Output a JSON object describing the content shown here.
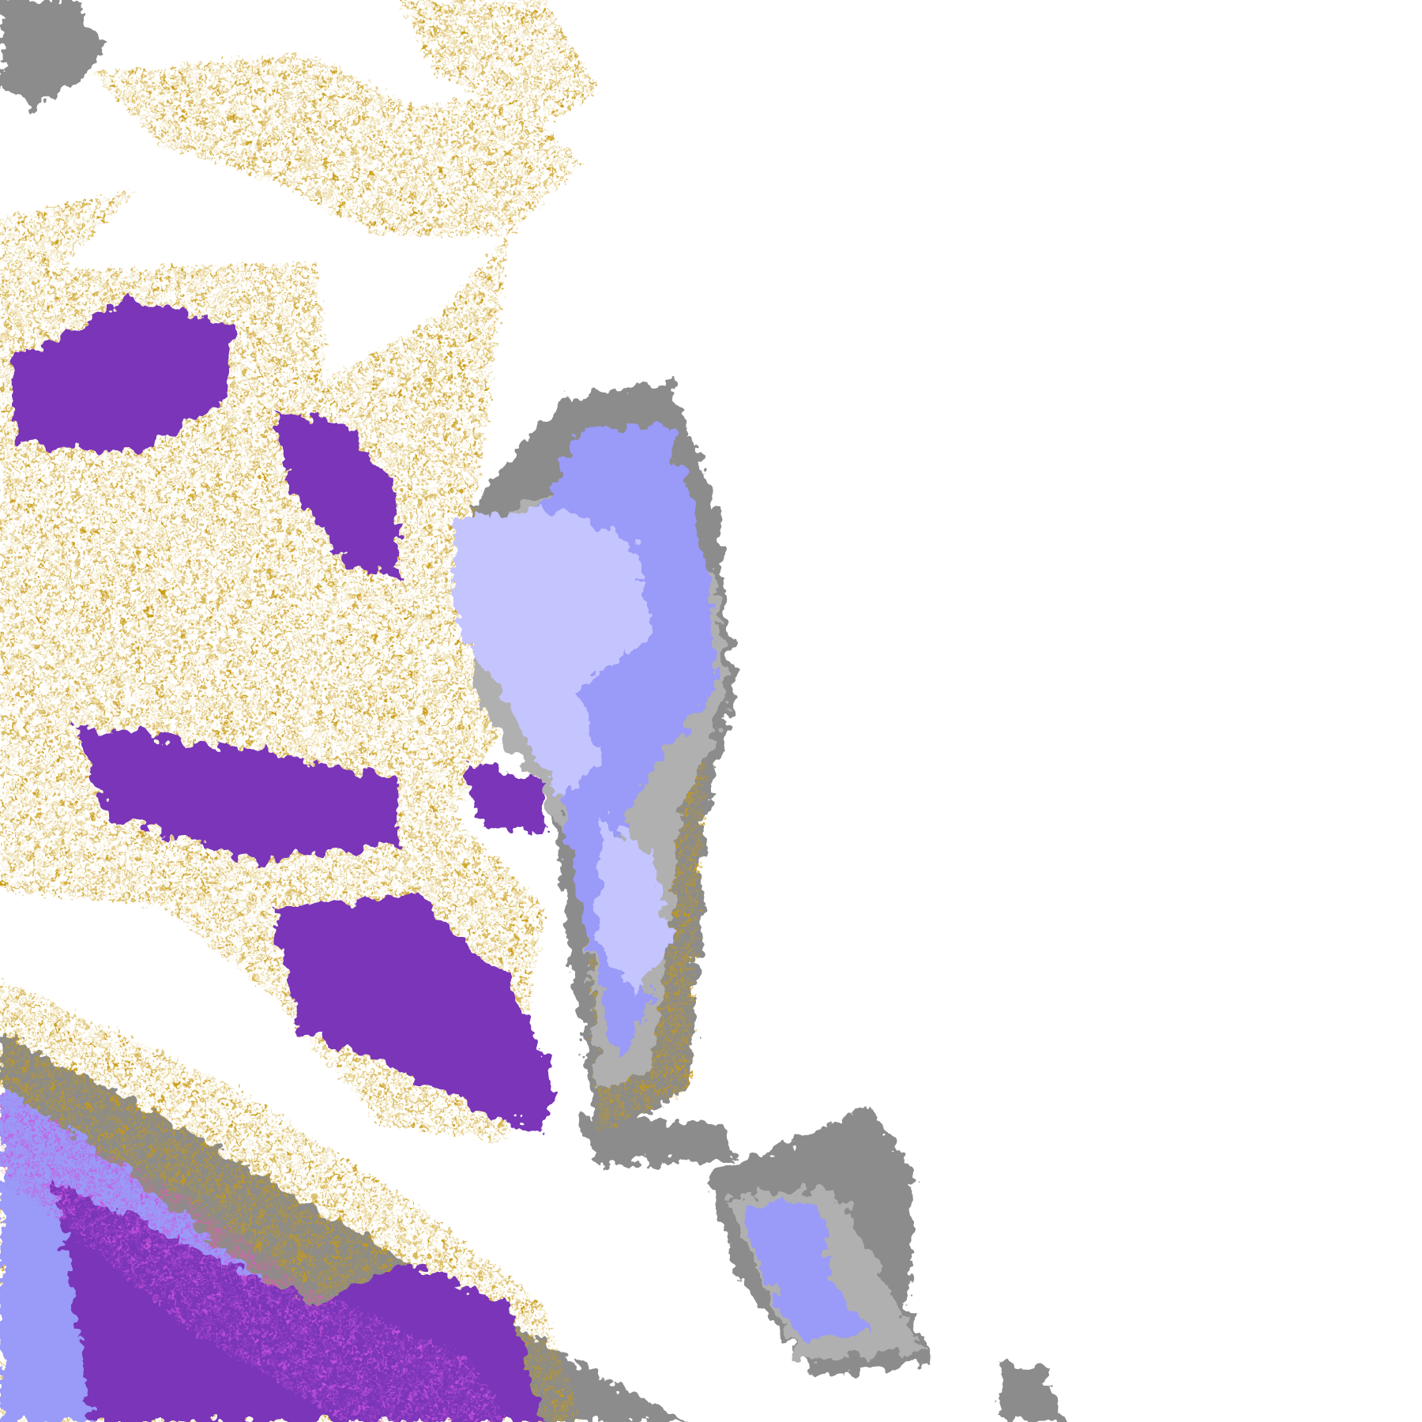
{
  "map": {
    "type": "classified raster",
    "background": "#ffffff",
    "palette": {
      "gold": "#c99a10",
      "bright_gold": "#e0b000",
      "purple": "#7a35b8",
      "magenta": "#cc55e0",
      "lavender": "#c4c4ff",
      "periwinkle": "#9a9af8",
      "gray": "#8c8c8c",
      "light_gray": "#b0b0b0"
    }
  }
}
